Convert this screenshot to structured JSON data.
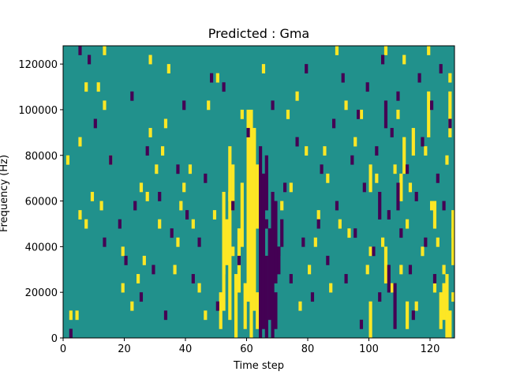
{
  "chart_data": {
    "type": "heatmap",
    "title": "Predicted : Gma",
    "xlabel": "Time step",
    "ylabel": "Frequency (Hz)",
    "xlim": [
      0,
      128
    ],
    "ylim": [
      0,
      128000
    ],
    "grid": false,
    "x_ticks": [
      0,
      20,
      40,
      60,
      80,
      100,
      120
    ],
    "y_ticks": [
      0,
      20000,
      40000,
      60000,
      80000,
      100000,
      120000
    ],
    "colors": {
      "background": "#21918c",
      "high": "#fde725",
      "low": "#440154"
    },
    "bins": {
      "time_steps": 128,
      "frequency_bins": 32
    },
    "yellow_cells": [
      [
        2,
        2
      ],
      [
        4,
        2
      ],
      [
        5,
        21
      ],
      [
        7,
        12
      ],
      [
        5,
        13
      ],
      [
        1,
        19
      ],
      [
        7,
        27
      ],
      [
        9,
        15
      ],
      [
        12,
        14
      ],
      [
        11,
        27
      ],
      [
        13,
        31
      ],
      [
        13,
        25
      ],
      [
        15,
        19
      ],
      [
        19,
        5
      ],
      [
        19,
        9
      ],
      [
        22,
        3
      ],
      [
        24,
        6
      ],
      [
        25,
        16
      ],
      [
        26,
        8
      ],
      [
        27,
        15
      ],
      [
        28,
        30
      ],
      [
        28,
        22
      ],
      [
        31,
        12
      ],
      [
        30,
        18
      ],
      [
        32,
        20
      ],
      [
        33,
        23
      ],
      [
        34,
        29
      ],
      [
        36,
        7
      ],
      [
        37,
        10
      ],
      [
        38,
        14
      ],
      [
        39,
        16
      ],
      [
        41,
        18
      ],
      [
        42,
        12
      ],
      [
        44,
        5
      ],
      [
        46,
        2
      ],
      [
        47,
        25
      ],
      [
        49,
        13
      ],
      [
        50,
        28
      ],
      [
        52,
        7
      ],
      [
        54,
        15
      ],
      [
        55,
        9
      ],
      [
        57,
        11
      ],
      [
        58,
        24
      ],
      [
        60,
        4
      ],
      [
        64,
        10
      ],
      [
        65,
        29
      ],
      [
        71,
        14
      ],
      [
        73,
        24
      ],
      [
        74,
        16
      ],
      [
        76,
        26
      ],
      [
        77,
        3
      ],
      [
        79,
        20
      ],
      [
        80,
        7
      ],
      [
        82,
        10
      ],
      [
        83,
        13
      ],
      [
        85,
        20
      ],
      [
        86,
        17
      ],
      [
        87,
        5
      ],
      [
        89,
        31
      ],
      [
        90,
        12
      ],
      [
        92,
        25
      ],
      [
        93,
        11
      ],
      [
        95,
        21
      ],
      [
        97,
        24
      ],
      [
        99,
        7
      ],
      [
        100,
        9
      ],
      [
        102,
        17
      ],
      [
        104,
        10
      ],
      [
        105,
        31
      ],
      [
        107,
        5
      ],
      [
        108,
        18
      ],
      [
        109,
        24
      ],
      [
        110,
        7
      ],
      [
        111,
        30
      ],
      [
        112,
        12
      ],
      [
        113,
        16
      ],
      [
        115,
        3
      ],
      [
        117,
        9
      ],
      [
        118,
        20
      ],
      [
        119,
        31
      ],
      [
        120,
        14
      ],
      [
        121,
        5
      ],
      [
        122,
        10
      ],
      [
        124,
        7
      ],
      [
        125,
        19
      ],
      [
        126,
        28
      ],
      [
        127,
        11
      ],
      [
        127,
        4
      ]
    ],
    "yellow_runs": [
      [
        51,
        1,
        4
      ],
      [
        52,
        3,
        15
      ],
      [
        53,
        8,
        12
      ],
      [
        54,
        2,
        20
      ],
      [
        55,
        14,
        18
      ],
      [
        56,
        0,
        6
      ],
      [
        57,
        5,
        10
      ],
      [
        58,
        10,
        16
      ],
      [
        59,
        1,
        5
      ],
      [
        60,
        4,
        24
      ],
      [
        61,
        0,
        24
      ],
      [
        62,
        3,
        22
      ],
      [
        63,
        1,
        4
      ],
      [
        63,
        12,
        18
      ],
      [
        100,
        0,
        3
      ],
      [
        100,
        16,
        18
      ],
      [
        105,
        6,
        9
      ],
      [
        110,
        15,
        17
      ],
      [
        123,
        1,
        4
      ],
      [
        124,
        2,
        5
      ],
      [
        125,
        0,
        6
      ],
      [
        126,
        0,
        2
      ],
      [
        127,
        8,
        13
      ],
      [
        111,
        18,
        21
      ],
      [
        112,
        1,
        3
      ],
      [
        114,
        20,
        22
      ],
      [
        119,
        22,
        26
      ],
      [
        126,
        22,
        26
      ],
      [
        121,
        12,
        14
      ]
    ],
    "purple_cells": [
      [
        2,
        0
      ],
      [
        5,
        31
      ],
      [
        8,
        30
      ],
      [
        10,
        23
      ],
      [
        13,
        10
      ],
      [
        15,
        19
      ],
      [
        18,
        12
      ],
      [
        20,
        8
      ],
      [
        22,
        26
      ],
      [
        23,
        14
      ],
      [
        25,
        4
      ],
      [
        27,
        20
      ],
      [
        29,
        7
      ],
      [
        31,
        15
      ],
      [
        33,
        2
      ],
      [
        35,
        11
      ],
      [
        37,
        18
      ],
      [
        39,
        25
      ],
      [
        40,
        13
      ],
      [
        42,
        6
      ],
      [
        44,
        10
      ],
      [
        46,
        17
      ],
      [
        48,
        28
      ],
      [
        50,
        3
      ],
      [
        52,
        27
      ],
      [
        55,
        14
      ],
      [
        57,
        8
      ],
      [
        60,
        22
      ],
      [
        66,
        12
      ],
      [
        68,
        25
      ],
      [
        70,
        9
      ],
      [
        72,
        16
      ],
      [
        74,
        6
      ],
      [
        76,
        21
      ],
      [
        78,
        10
      ],
      [
        79,
        29
      ],
      [
        81,
        4
      ],
      [
        83,
        12
      ],
      [
        84,
        18
      ],
      [
        86,
        8
      ],
      [
        88,
        23
      ],
      [
        89,
        14
      ],
      [
        91,
        28
      ],
      [
        92,
        6
      ],
      [
        94,
        19
      ],
      [
        95,
        11
      ],
      [
        96,
        24
      ],
      [
        97,
        1
      ],
      [
        98,
        16
      ],
      [
        99,
        27
      ],
      [
        101,
        9
      ],
      [
        102,
        20
      ],
      [
        103,
        4
      ],
      [
        104,
        30
      ],
      [
        106,
        13
      ],
      [
        107,
        22
      ],
      [
        108,
        1
      ],
      [
        109,
        26
      ],
      [
        110,
        11
      ],
      [
        112,
        18
      ],
      [
        113,
        7
      ],
      [
        114,
        2
      ],
      [
        115,
        15
      ],
      [
        116,
        28
      ],
      [
        117,
        21
      ],
      [
        118,
        10
      ],
      [
        120,
        25
      ],
      [
        121,
        6
      ],
      [
        122,
        17
      ],
      [
        123,
        29
      ],
      [
        124,
        14
      ],
      [
        126,
        23
      ]
    ],
    "purple_runs": [
      [
        64,
        0,
        20
      ],
      [
        65,
        1,
        17
      ],
      [
        66,
        0,
        8
      ],
      [
        66,
        14,
        19
      ],
      [
        67,
        2,
        11
      ],
      [
        68,
        0,
        15
      ],
      [
        69,
        1,
        4
      ],
      [
        69,
        6,
        14
      ],
      [
        70,
        7,
        9
      ],
      [
        71,
        10,
        12
      ],
      [
        103,
        13,
        15
      ],
      [
        105,
        23,
        25
      ],
      [
        106,
        5,
        7
      ],
      [
        108,
        2,
        5
      ],
      [
        109,
        14,
        16
      ]
    ]
  }
}
